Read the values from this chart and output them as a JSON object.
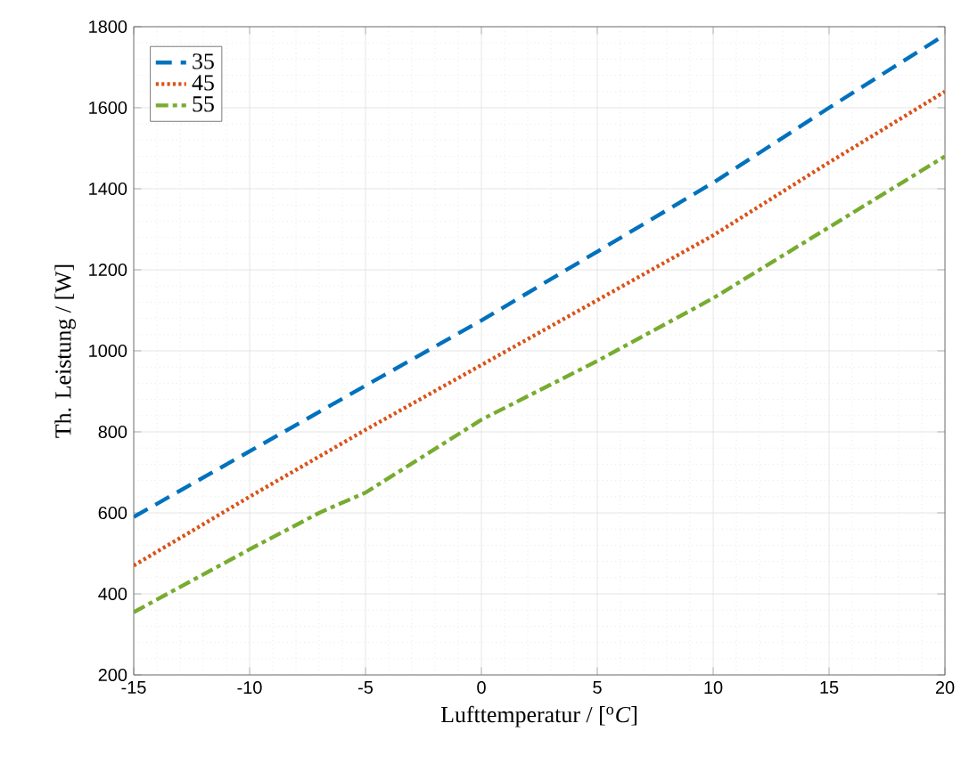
{
  "chart_data": {
    "type": "line",
    "xlabel": "Lufttemperatur / [$^{o}$*C*]",
    "ylabel": "Th. Leistung / [W]",
    "xlim": [
      -15,
      20
    ],
    "xticks": [
      -15,
      -10,
      -5,
      0,
      5,
      10,
      15,
      20
    ],
    "ylim": [
      200,
      1800
    ],
    "yticks": [
      200,
      400,
      600,
      800,
      1000,
      1200,
      1400,
      1600,
      1800
    ],
    "grid": true,
    "legend": "top left",
    "marker": "none",
    "series": [
      {
        "name": "35",
        "color": "#0072bd",
        "line_style": "dashed",
        "x": [
          -15,
          -10,
          -5,
          0,
          5,
          10,
          15,
          20
        ],
        "values": [
          590,
          752,
          914,
          1075,
          1245,
          1415,
          1600,
          1780
        ]
      },
      {
        "name": "45",
        "color": "#d95319",
        "line_style": "dotted",
        "x": [
          -15,
          -10,
          -5,
          0,
          5,
          10,
          15,
          20
        ],
        "values": [
          470,
          640,
          805,
          965,
          1125,
          1285,
          1465,
          1640
        ]
      },
      {
        "name": "55",
        "color": "#77ac30",
        "line_style": "dashdot",
        "x": [
          -15,
          -10,
          -7,
          -5,
          0,
          5,
          10,
          15,
          20
        ],
        "values": [
          355,
          510,
          600,
          650,
          830,
          975,
          1130,
          1305,
          1480
        ]
      }
    ]
  }
}
